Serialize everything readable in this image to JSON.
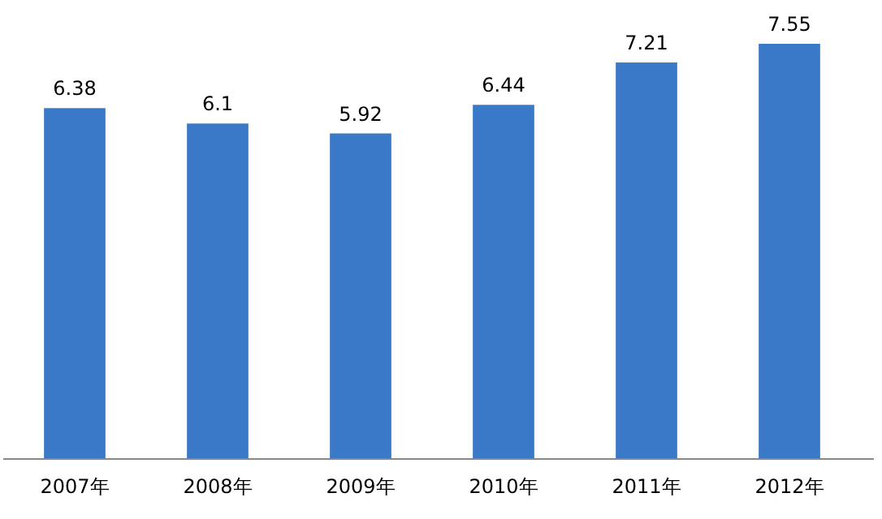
{
  "chart_data": {
    "type": "bar",
    "categories": [
      "2007年",
      "2008年",
      "2009年",
      "2010年",
      "2011年",
      "2012年"
    ],
    "values": [
      6.38,
      6.1,
      5.92,
      6.44,
      7.21,
      7.55
    ],
    "color": "#3a78c8",
    "data_labels": true
  }
}
